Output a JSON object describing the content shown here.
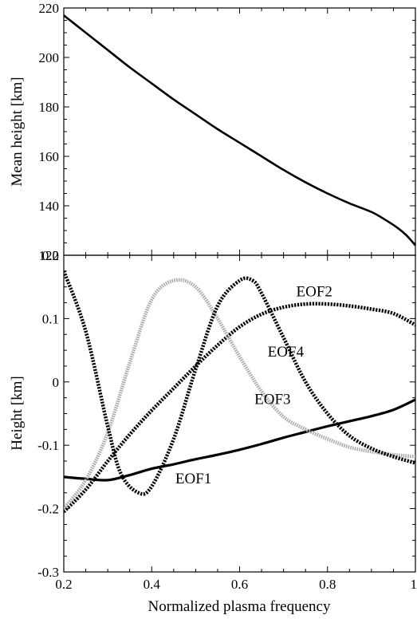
{
  "chart_data": [
    {
      "type": "line",
      "title": "",
      "xlabel": "",
      "ylabel": "Mean height [km]",
      "xlim": [
        0.2,
        1.0
      ],
      "ylim": [
        120,
        220
      ],
      "y_ticks": [
        120,
        140,
        160,
        180,
        200,
        220
      ],
      "y_tick_labels": [
        "120",
        "140",
        "160",
        "180",
        "200",
        "220"
      ],
      "x_tick_labels_shown": false,
      "grid": false,
      "series": [
        {
          "color": "#000000",
          "style": "solid",
          "x": [
            0.2,
            0.25,
            0.3,
            0.35,
            0.4,
            0.45,
            0.5,
            0.55,
            0.6,
            0.65,
            0.7,
            0.75,
            0.8,
            0.85,
            0.9,
            0.93,
            0.96,
            0.98,
            1.0
          ],
          "y": [
            217,
            210,
            203,
            196,
            189.5,
            183,
            177,
            171,
            165.5,
            160,
            154.5,
            149.5,
            145,
            141,
            137.5,
            134.5,
            131,
            128,
            124
          ]
        }
      ]
    },
    {
      "type": "line",
      "title": "",
      "xlabel": "Normalized plasma frequency",
      "ylabel": "Height [km]",
      "xlim": [
        0.2,
        1.0
      ],
      "ylim": [
        -0.3,
        0.2
      ],
      "x_ticks": [
        0.2,
        0.4,
        0.6,
        0.8,
        1.0
      ],
      "x_tick_labels": [
        "0.2",
        "0.4",
        "0.6",
        "0.8",
        "1"
      ],
      "y_ticks": [
        -0.3,
        -0.2,
        -0.1,
        0,
        0.1,
        0.2
      ],
      "y_tick_labels": [
        "-0.3",
        "-0.2",
        "-0.1",
        "0",
        "0.1",
        "0.2"
      ],
      "grid": false,
      "series": [
        {
          "name": "EOF1",
          "color": "#000000",
          "style": "solid-thick",
          "x": [
            0.2,
            0.25,
            0.3,
            0.35,
            0.4,
            0.45,
            0.5,
            0.55,
            0.6,
            0.65,
            0.7,
            0.75,
            0.8,
            0.85,
            0.9,
            0.95,
            1.0
          ],
          "y": [
            -0.15,
            -0.153,
            -0.155,
            -0.147,
            -0.137,
            -0.13,
            -0.122,
            -0.115,
            -0.107,
            -0.098,
            -0.088,
            -0.079,
            -0.07,
            -0.062,
            -0.054,
            -0.044,
            -0.028
          ]
        },
        {
          "name": "EOF2",
          "color": "#000000",
          "style": "dotted-thick",
          "x": [
            0.2,
            0.25,
            0.3,
            0.35,
            0.4,
            0.45,
            0.5,
            0.55,
            0.6,
            0.65,
            0.7,
            0.75,
            0.8,
            0.85,
            0.9,
            0.95,
            1.0
          ],
          "y": [
            -0.205,
            -0.17,
            -0.125,
            -0.083,
            -0.045,
            -0.01,
            0.025,
            0.058,
            0.087,
            0.107,
            0.118,
            0.123,
            0.123,
            0.12,
            0.115,
            0.108,
            0.09
          ]
        },
        {
          "name": "EOF3",
          "color": "#aaaaaa",
          "style": "hatched-thick",
          "x": [
            0.2,
            0.25,
            0.3,
            0.35,
            0.4,
            0.45,
            0.5,
            0.55,
            0.6,
            0.65,
            0.7,
            0.75,
            0.8,
            0.85,
            0.9,
            0.95,
            1.0
          ],
          "y": [
            -0.2,
            -0.155,
            -0.08,
            0.03,
            0.13,
            0.16,
            0.15,
            0.1,
            0.04,
            -0.015,
            -0.055,
            -0.075,
            -0.09,
            -0.103,
            -0.11,
            -0.115,
            -0.118
          ]
        },
        {
          "name": "EOF4",
          "color": "#000000",
          "style": "dotted-thick",
          "x": [
            0.2,
            0.25,
            0.3,
            0.33,
            0.37,
            0.4,
            0.45,
            0.5,
            0.55,
            0.6,
            0.63,
            0.65,
            0.7,
            0.75,
            0.8,
            0.85,
            0.9,
            0.95,
            1.0
          ],
          "y": [
            0.175,
            0.08,
            -0.07,
            -0.145,
            -0.175,
            -0.165,
            -0.09,
            0.02,
            0.12,
            0.16,
            0.16,
            0.14,
            0.07,
            0.0,
            -0.05,
            -0.085,
            -0.105,
            -0.118,
            -0.128
          ]
        }
      ],
      "annotations": [
        {
          "text": "EOF2",
          "x": 0.77,
          "y": 0.135
        },
        {
          "text": "EOF4",
          "x": 0.705,
          "y": 0.04
        },
        {
          "text": "EOF3",
          "x": 0.675,
          "y": -0.035
        },
        {
          "text": "EOF1",
          "x": 0.495,
          "y": -0.16
        }
      ]
    }
  ]
}
